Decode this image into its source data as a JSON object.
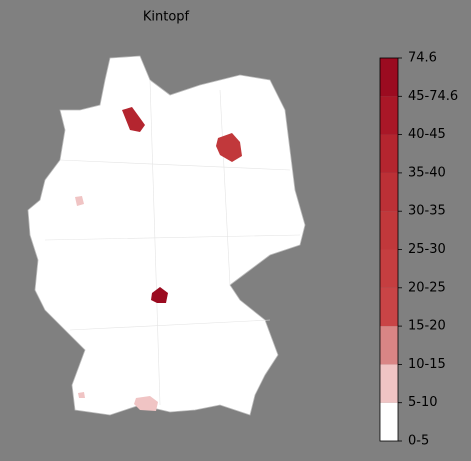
{
  "title": "Kintopf",
  "colorbar": {
    "labels": [
      "0-5",
      "5-10",
      "10-15",
      "15-20",
      "20-25",
      "25-30",
      "30-35",
      "35-40",
      "40-45",
      "45-74.6",
      "74.6"
    ],
    "colors": [
      "#ffffff",
      "#f0c4c4",
      "#d98585",
      "#c94446",
      "#c53e40",
      "#c1383b",
      "#bc3036",
      "#b4252f",
      "#a91727",
      "#9b0b20"
    ]
  }
}
